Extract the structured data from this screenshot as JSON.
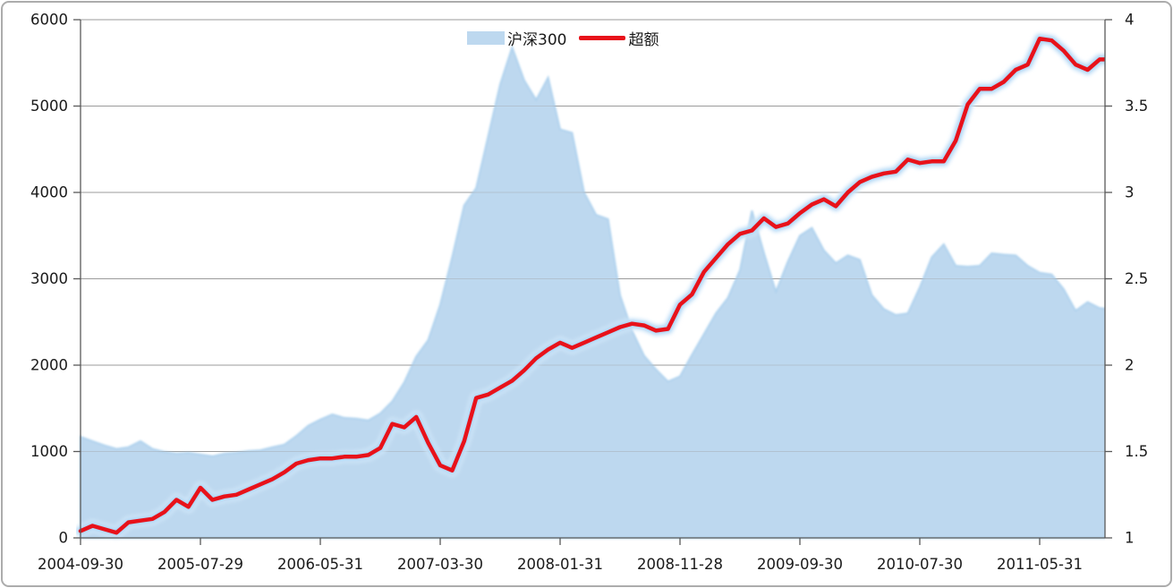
{
  "legend": {
    "items": [
      {
        "label": "沪深300",
        "swatch": "area"
      },
      {
        "label": "超额",
        "swatch": "line"
      }
    ]
  },
  "colors": {
    "area_fill": "#BDD8EF",
    "area_edge": "#AFD2EE",
    "line_red": "#E8121A",
    "glow_inner": "#A5D2F4",
    "glow_outer": "#D9ECFB",
    "grid": "#9B9B9B",
    "axis": "#595959",
    "text": "#1A1A1A",
    "frame": "#ACACAC",
    "background": "#FFFFFF"
  },
  "chart_data": {
    "type": "area",
    "title": "",
    "xlabel": "",
    "ylabel_left": "",
    "ylabel_right": "",
    "grid": true,
    "legend_position": "top-center",
    "x": [
      "2004-09",
      "2004-10",
      "2004-11",
      "2004-12",
      "2005-01",
      "2005-02",
      "2005-03",
      "2005-04",
      "2005-05",
      "2005-06",
      "2005-07",
      "2005-08",
      "2005-09",
      "2005-10",
      "2005-11",
      "2005-12",
      "2006-01",
      "2006-02",
      "2006-03",
      "2006-04",
      "2006-05",
      "2006-06",
      "2006-07",
      "2006-08",
      "2006-09",
      "2006-10",
      "2006-11",
      "2006-12",
      "2007-01",
      "2007-02",
      "2007-03",
      "2007-04",
      "2007-05",
      "2007-06",
      "2007-07",
      "2007-08",
      "2007-09",
      "2007-10",
      "2007-11",
      "2007-12",
      "2008-01",
      "2008-02",
      "2008-03",
      "2008-04",
      "2008-05",
      "2008-06",
      "2008-07",
      "2008-08",
      "2008-09",
      "2008-10",
      "2008-11",
      "2008-12",
      "2009-01",
      "2009-02",
      "2009-03",
      "2009-04",
      "2009-05",
      "2009-06",
      "2009-07",
      "2009-08",
      "2009-09",
      "2009-10",
      "2009-11",
      "2009-12",
      "2010-01",
      "2010-02",
      "2010-03",
      "2010-04",
      "2010-05",
      "2010-06",
      "2010-07",
      "2010-08",
      "2010-09",
      "2010-10",
      "2010-11",
      "2010-12",
      "2011-01",
      "2011-02",
      "2011-03",
      "2011-04",
      "2011-05",
      "2011-06",
      "2011-07",
      "2011-08",
      "2011-09",
      "2011-10",
      "2011-11"
    ],
    "series": [
      {
        "name": "沪深300",
        "type": "area",
        "axis": "left",
        "values": [
          1170,
          1120,
          1070,
          1030,
          1050,
          1120,
          1030,
          995,
          975,
          985,
          965,
          945,
          975,
          985,
          1005,
          1015,
          1050,
          1080,
          1180,
          1300,
          1370,
          1430,
          1390,
          1380,
          1360,
          1440,
          1580,
          1800,
          2100,
          2290,
          2700,
          3250,
          3850,
          4050,
          4650,
          5250,
          5680,
          5300,
          5070,
          5330,
          4730,
          4690,
          4000,
          3740,
          3690,
          2810,
          2400,
          2110,
          1950,
          1810,
          1870,
          2120,
          2360,
          2600,
          2780,
          3100,
          3790,
          3300,
          2850,
          3200,
          3500,
          3590,
          3330,
          3180,
          3270,
          3220,
          2810,
          2650,
          2580,
          2600,
          2900,
          3250,
          3400,
          3150,
          3140,
          3150,
          3295,
          3280,
          3270,
          3150,
          3070,
          3050,
          2880,
          2630,
          2730,
          2660,
          2650
        ]
      },
      {
        "name": "超额",
        "type": "line",
        "axis": "right",
        "values": [
          1.04,
          1.07,
          1.05,
          1.03,
          1.09,
          1.1,
          1.11,
          1.15,
          1.22,
          1.18,
          1.29,
          1.22,
          1.24,
          1.25,
          1.28,
          1.31,
          1.34,
          1.38,
          1.43,
          1.45,
          1.46,
          1.46,
          1.47,
          1.47,
          1.48,
          1.52,
          1.66,
          1.64,
          1.7,
          1.55,
          1.42,
          1.39,
          1.56,
          1.81,
          1.83,
          1.87,
          1.91,
          1.97,
          2.04,
          2.09,
          2.13,
          2.1,
          2.13,
          2.16,
          2.19,
          2.22,
          2.24,
          2.23,
          2.2,
          2.21,
          2.35,
          2.41,
          2.54,
          2.62,
          2.7,
          2.76,
          2.78,
          2.85,
          2.8,
          2.82,
          2.88,
          2.93,
          2.96,
          2.92,
          3.0,
          3.06,
          3.09,
          3.11,
          3.12,
          3.19,
          3.17,
          3.18,
          3.18,
          3.3,
          3.51,
          3.6,
          3.6,
          3.64,
          3.71,
          3.74,
          3.89,
          3.88,
          3.82,
          3.74,
          3.71,
          3.77,
          3.77
        ]
      }
    ],
    "x_tick_indices": [
      0,
      10,
      20,
      30,
      40,
      50,
      60,
      70,
      80
    ],
    "x_tick_labels": [
      "2004-09-30",
      "2005-07-29",
      "2006-05-31",
      "2007-03-30",
      "2008-01-31",
      "2008-11-28",
      "2009-09-30",
      "2010-07-30",
      "2011-05-31"
    ],
    "left_axis": {
      "min": 0,
      "max": 6000,
      "tick_values": [
        0,
        1000,
        2000,
        3000,
        4000,
        5000,
        6000
      ],
      "tick_labels": [
        "0",
        "1000",
        "2000",
        "3000",
        "4000",
        "5000",
        "6000"
      ]
    },
    "right_axis": {
      "min": 1,
      "max": 4,
      "tick_values": [
        1,
        1.5,
        2,
        2.5,
        3,
        3.5,
        4
      ],
      "tick_labels": [
        "1",
        "1.5",
        "2",
        "2.5",
        "3",
        "3.5",
        "4"
      ]
    }
  }
}
